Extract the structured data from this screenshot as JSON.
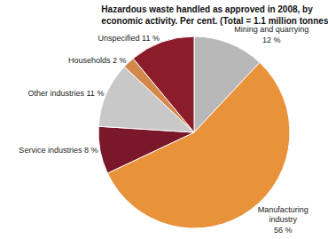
{
  "chart_data": {
    "type": "pie",
    "title": "Hazardous waste handled as approved in 2008, by\neconomic activity. Per cent. (Total = 1.1 million tonnes)",
    "categories": [
      "Mining and quarrying\n12 %",
      "Manufacturing\nindustry\n56 %",
      "Service industries 8 %",
      "Other industries 11 %",
      "Households 2 %",
      "Unspecified 11 %"
    ],
    "values": [
      12,
      56,
      8,
      11,
      2,
      11
    ],
    "colors": [
      "#b8b8b8",
      "#e8923a",
      "#7a1728",
      "#c8c8c8",
      "#d4874a",
      "#8b1c2a"
    ]
  }
}
